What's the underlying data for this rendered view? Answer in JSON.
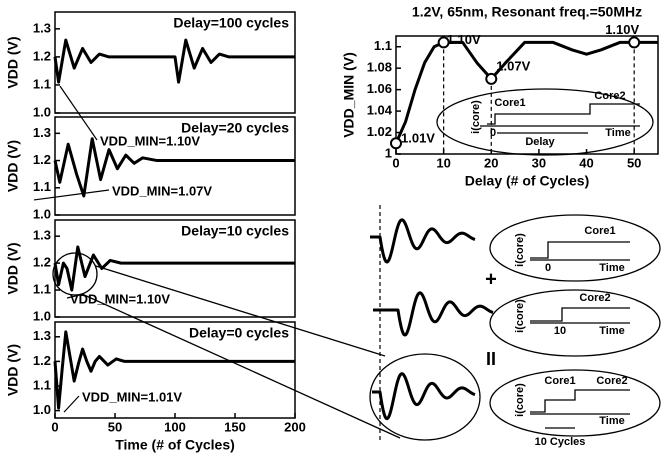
{
  "chart_data": [
    {
      "type": "line",
      "title": "Delay=100 cycles",
      "ylabel": "VDD (V)",
      "annotation": "VDD_MIN=1.10V",
      "x": [
        0,
        3,
        9,
        16,
        23,
        30,
        37,
        45,
        100,
        103,
        109,
        116,
        123,
        130,
        137,
        145,
        200
      ],
      "values": [
        1.2,
        1.11,
        1.26,
        1.16,
        1.23,
        1.18,
        1.21,
        1.2,
        1.2,
        1.11,
        1.26,
        1.16,
        1.23,
        1.18,
        1.21,
        1.2,
        1.2
      ],
      "color": "#000000",
      "xlim": [
        0,
        200
      ],
      "ylim": [
        1.0,
        1.36
      ],
      "yticks": [
        {
          "value": 1,
          "label": "1.0"
        },
        1.1,
        1.2,
        1.3
      ]
    },
    {
      "type": "line",
      "title": "Delay=20 cycles",
      "ylabel": "VDD (V)",
      "annotation": "VDD_MIN=1.07V",
      "x": [
        0,
        4,
        11,
        18,
        24,
        31,
        38,
        45,
        52,
        59,
        66,
        73,
        85,
        200
      ],
      "values": [
        1.2,
        1.12,
        1.26,
        1.15,
        1.07,
        1.28,
        1.13,
        1.24,
        1.17,
        1.22,
        1.19,
        1.21,
        1.2,
        1.2
      ],
      "color": "#000000",
      "xlim": [
        0,
        200
      ],
      "ylim": [
        1.0,
        1.36
      ],
      "yticks": [
        {
          "value": 1,
          "label": "1.0"
        },
        1.1,
        1.2,
        1.3
      ]
    },
    {
      "type": "line",
      "title": "Delay=10 cycles",
      "ylabel": "VDD (V)",
      "annotation": "VDD_MIN=1.10V",
      "x": [
        0,
        3,
        7,
        10,
        14,
        19,
        25,
        32,
        39,
        46,
        55,
        200
      ],
      "values": [
        1.2,
        1.12,
        1.2,
        1.18,
        1.1,
        1.26,
        1.15,
        1.23,
        1.18,
        1.21,
        1.2,
        1.2
      ],
      "color": "#000000",
      "xlim": [
        0,
        200
      ],
      "ylim": [
        1.0,
        1.36
      ],
      "yticks": [
        {
          "value": 1,
          "label": "1.0"
        },
        1.1,
        1.2,
        1.3
      ]
    },
    {
      "type": "line",
      "title": "Delay=0 cycles",
      "ylabel": "VDD (V)",
      "xlabel": "Time (# of Cycles)",
      "annotation": "VDD_MIN=1.01V",
      "x": [
        0,
        3,
        6,
        9,
        12.5,
        16,
        19.5,
        23,
        26.5,
        30,
        33.5,
        37,
        44,
        51,
        58,
        200
      ],
      "values": [
        1.2,
        1.01,
        1.17,
        1.32,
        1.22,
        1.12,
        1.19,
        1.25,
        1.2,
        1.16,
        1.2,
        1.22,
        1.185,
        1.21,
        1.2,
        1.2
      ],
      "color": "#000000",
      "xlim": [
        0,
        200
      ],
      "ylim": [
        0.97,
        1.36
      ],
      "xticks": [
        0,
        50,
        100,
        150,
        200
      ],
      "yticks": [
        {
          "value": 1,
          "label": "1.0"
        },
        1.1,
        1.2,
        1.3
      ]
    },
    {
      "type": "line",
      "title": "1.2V, 65nm, Resonant freq.=50MHz",
      "ylabel": "VDD_MIN (V)",
      "xlabel": "Delay (# of Cycles)",
      "x": [
        0,
        2,
        4,
        6,
        8,
        10,
        14,
        17,
        20,
        23,
        27,
        33,
        37,
        40,
        43,
        47,
        55
      ],
      "values": [
        1.01,
        1.03,
        1.06,
        1.085,
        1.1,
        1.104,
        1.104,
        1.085,
        1.07,
        1.085,
        1.104,
        1.104,
        1.097,
        1.093,
        1.097,
        1.104,
        1.104
      ],
      "color": "#000000",
      "xlim": [
        0,
        55
      ],
      "ylim": [
        1,
        1.11
      ],
      "xticks": [
        0,
        10,
        20,
        30,
        40,
        50
      ],
      "yticks": [
        1,
        1.02,
        1.04,
        1.06,
        1.08,
        1.1
      ],
      "points": {
        "x": [
          0,
          10,
          20,
          50
        ],
        "values": [
          1.01,
          1.104,
          1.07,
          1.104
        ],
        "value_labels": [
          "1.01V",
          "1.10V",
          "1.07V",
          "1.10V"
        ]
      }
    }
  ],
  "diagram": {
    "inset_top": {
      "ylabel": "i(core)",
      "core1": "Core1",
      "core2": "Core2",
      "zero": "0",
      "delay": "Delay",
      "time": "Time"
    },
    "inset1": {
      "ylabel": "i(core)",
      "core1": "Core1",
      "zero": "0",
      "time": "Time"
    },
    "inset2": {
      "ylabel": "i(core)",
      "core2": "Core2",
      "ten": "10",
      "time": "Time"
    },
    "inset3": {
      "ylabel": "i(core)",
      "core1": "Core1",
      "core2": "Core2",
      "time": "Time",
      "cycles": "10 Cycles"
    },
    "plus": "+",
    "equals": "II"
  }
}
